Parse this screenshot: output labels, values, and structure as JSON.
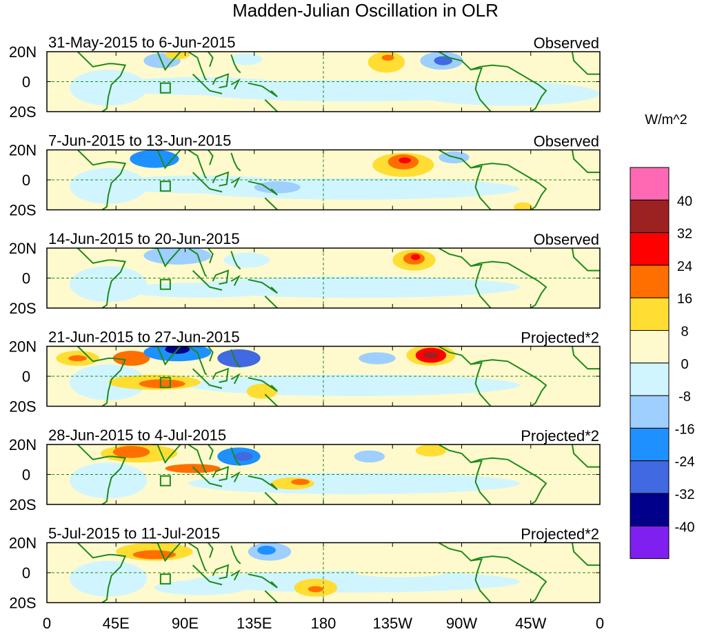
{
  "chart_data": {
    "type": "heatmap",
    "title": "Madden-Julian Oscillation in OLR",
    "units": "W/m^2",
    "x_ticks": [
      "0",
      "45E",
      "90E",
      "135E",
      "180",
      "135W",
      "90W",
      "45W",
      "0"
    ],
    "y_ticks": [
      "20N",
      "0",
      "20S"
    ],
    "colorbar": {
      "labels": [
        "40",
        "32",
        "24",
        "16",
        "8",
        "0",
        "-8",
        "-16",
        "-24",
        "-32",
        "-40"
      ],
      "colors": [
        "#ff69b4",
        "#9c2222",
        "#ff0000",
        "#ff6f00",
        "#ffdd33",
        "#fffacd",
        "#d1f5ff",
        "#9ecfff",
        "#1e90ff",
        "#4169e1",
        "#00008b",
        "#8020f0"
      ]
    },
    "panels": [
      {
        "dates": "31-May-2015 to 6-Jun-2015",
        "label": "Observed",
        "anomalies": [
          {
            "lon": 100,
            "lat": -3,
            "rlon": 60,
            "rlat": 6,
            "v": -4
          },
          {
            "lon": 75,
            "lat": 14,
            "rlon": 12,
            "rlat": 5,
            "v": -12
          },
          {
            "lon": 85,
            "lat": 18,
            "rlon": 8,
            "rlat": 3,
            "v": 12
          },
          {
            "lon": 130,
            "lat": 15,
            "rlon": 10,
            "rlat": 4,
            "v": -4
          },
          {
            "lon": 221,
            "lat": 13,
            "rlon": 12,
            "rlat": 7,
            "v": 12
          },
          {
            "lon": 222,
            "lat": 16,
            "rlon": 4,
            "rlat": 2,
            "v": 18
          },
          {
            "lon": 257,
            "lat": 14,
            "rlon": 14,
            "rlat": 6,
            "v": -14
          },
          {
            "lon": 258,
            "lat": 14,
            "rlon": 6,
            "rlat": 3,
            "v": -26
          },
          {
            "lon": 300,
            "lat": -8,
            "rlon": 60,
            "rlat": 8,
            "v": -4
          }
        ]
      },
      {
        "dates": "7-Jun-2015 to 13-Jun-2015",
        "label": "Observed",
        "anomalies": [
          {
            "lon": 70,
            "lat": 14,
            "rlon": 16,
            "rlat": 6,
            "v": -18
          },
          {
            "lon": 100,
            "lat": -3,
            "rlon": 60,
            "rlat": 6,
            "v": -6
          },
          {
            "lon": 150,
            "lat": -5,
            "rlon": 15,
            "rlat": 4,
            "v": -12
          },
          {
            "lon": 232,
            "lat": 10,
            "rlon": 20,
            "rlat": 8,
            "v": 10
          },
          {
            "lon": 232,
            "lat": 12,
            "rlon": 10,
            "rlat": 5,
            "v": 18
          },
          {
            "lon": 233,
            "lat": 13,
            "rlon": 4,
            "rlat": 2,
            "v": 26
          },
          {
            "lon": 265,
            "lat": 15,
            "rlon": 10,
            "rlat": 4,
            "v": -12
          },
          {
            "lon": 310,
            "lat": -18,
            "rlon": 6,
            "rlat": 3,
            "v": 12
          }
        ]
      },
      {
        "dates": "14-Jun-2015 to 20-Jun-2015",
        "label": "Observed",
        "anomalies": [
          {
            "lon": 85,
            "lat": 15,
            "rlon": 22,
            "rlat": 6,
            "v": -16
          },
          {
            "lon": 130,
            "lat": 12,
            "rlon": 15,
            "rlat": 5,
            "v": -6
          },
          {
            "lon": 100,
            "lat": -8,
            "rlon": 50,
            "rlat": 5,
            "v": -4
          },
          {
            "lon": 239,
            "lat": 12,
            "rlon": 14,
            "rlat": 7,
            "v": 12
          },
          {
            "lon": 239,
            "lat": 13,
            "rlon": 7,
            "rlat": 4,
            "v": 20
          },
          {
            "lon": 240,
            "lat": 14,
            "rlon": 3,
            "rlat": 2,
            "v": 27
          },
          {
            "lon": 190,
            "lat": -3,
            "rlon": 30,
            "rlat": 3,
            "v": -6
          }
        ]
      },
      {
        "dates": "21-Jun-2015 to 27-Jun-2015",
        "label": "Projected*2",
        "anomalies": [
          {
            "lon": 20,
            "lat": 12,
            "rlon": 14,
            "rlat": 5,
            "v": 12
          },
          {
            "lon": 20,
            "lat": 12,
            "rlon": 6,
            "rlat": 2,
            "v": 18
          },
          {
            "lon": 55,
            "lat": 12,
            "rlon": 12,
            "rlat": 5,
            "v": 18
          },
          {
            "lon": 85,
            "lat": 16,
            "rlon": 22,
            "rlat": 6,
            "v": -20
          },
          {
            "lon": 85,
            "lat": 18,
            "rlon": 8,
            "rlat": 3,
            "v": -34
          },
          {
            "lon": 125,
            "lat": 12,
            "rlon": 14,
            "rlat": 6,
            "v": -26
          },
          {
            "lon": 70,
            "lat": -4,
            "rlon": 30,
            "rlat": 5,
            "v": 12
          },
          {
            "lon": 75,
            "lat": -5,
            "rlon": 15,
            "rlat": 3,
            "v": 20
          },
          {
            "lon": 140,
            "lat": -10,
            "rlon": 10,
            "rlat": 5,
            "v": 10
          },
          {
            "lon": 250,
            "lat": 14,
            "rlon": 16,
            "rlat": 7,
            "v": 12
          },
          {
            "lon": 250,
            "lat": 14,
            "rlon": 10,
            "rlat": 5,
            "v": 26
          },
          {
            "lon": 250,
            "lat": 14,
            "rlon": 5,
            "rlat": 2,
            "v": 36
          },
          {
            "lon": 215,
            "lat": 12,
            "rlon": 12,
            "rlat": 4,
            "v": -10
          }
        ]
      },
      {
        "dates": "28-Jun-2015 to 4-Jul-2015",
        "label": "Projected*2",
        "anomalies": [
          {
            "lon": 60,
            "lat": 14,
            "rlon": 25,
            "rlat": 6,
            "v": 12
          },
          {
            "lon": 55,
            "lat": 15,
            "rlon": 12,
            "rlat": 4,
            "v": 18
          },
          {
            "lon": 95,
            "lat": 4,
            "rlon": 18,
            "rlat": 3,
            "v": 16
          },
          {
            "lon": 125,
            "lat": 12,
            "rlon": 14,
            "rlat": 6,
            "v": -20
          },
          {
            "lon": 128,
            "lat": 12,
            "rlon": 6,
            "rlat": 3,
            "v": -28
          },
          {
            "lon": 160,
            "lat": -6,
            "rlon": 14,
            "rlat": 4,
            "v": 12
          },
          {
            "lon": 165,
            "lat": -5,
            "rlon": 6,
            "rlat": 2,
            "v": 20
          },
          {
            "lon": 250,
            "lat": 16,
            "rlon": 10,
            "rlat": 4,
            "v": 14
          },
          {
            "lon": 210,
            "lat": 12,
            "rlon": 10,
            "rlat": 4,
            "v": -10
          }
        ]
      },
      {
        "dates": "5-Jul-2015 to 11-Jul-2015",
        "label": "Projected*2",
        "anomalies": [
          {
            "lon": 70,
            "lat": 14,
            "rlon": 25,
            "rlat": 6,
            "v": 12
          },
          {
            "lon": 70,
            "lat": 12,
            "rlon": 14,
            "rlat": 3,
            "v": 18
          },
          {
            "lon": 145,
            "lat": 14,
            "rlon": 14,
            "rlat": 6,
            "v": -12
          },
          {
            "lon": 143,
            "lat": 15,
            "rlon": 6,
            "rlat": 3,
            "v": -20
          },
          {
            "lon": 175,
            "lat": -10,
            "rlon": 14,
            "rlat": 6,
            "v": 10
          },
          {
            "lon": 175,
            "lat": -11,
            "rlon": 5,
            "rlat": 2,
            "v": 18
          },
          {
            "lon": 100,
            "lat": -10,
            "rlon": 30,
            "rlat": 5,
            "v": -5
          },
          {
            "lon": 230,
            "lat": 0,
            "rlon": 30,
            "rlat": 3,
            "v": 4
          }
        ]
      }
    ]
  }
}
